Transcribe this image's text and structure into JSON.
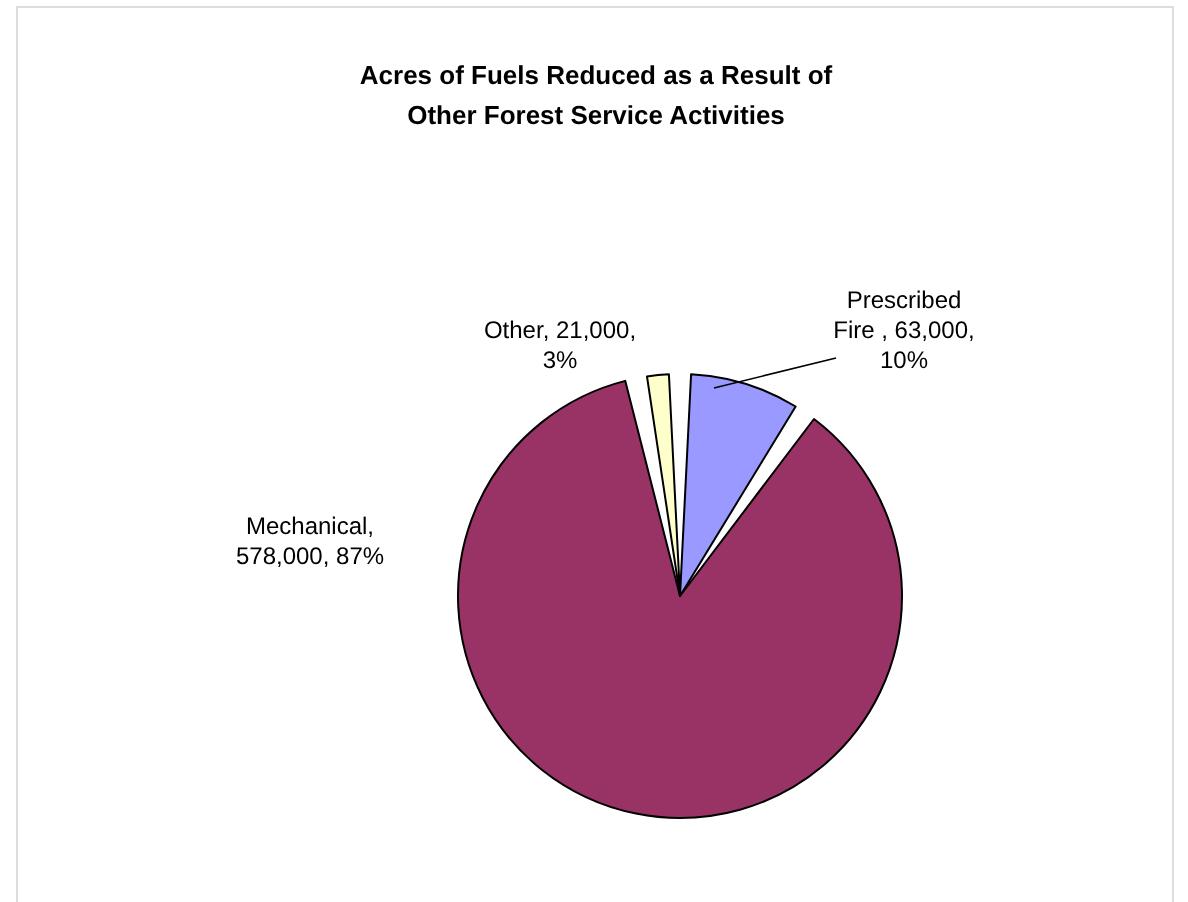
{
  "chart_data": {
    "type": "pie",
    "title": "Acres of Fuels Reduced as a Result of Other Forest Service Activities",
    "categories": [
      "Prescribed Fire",
      "Mechanical",
      "Other"
    ],
    "values": [
      63000,
      578000,
      21000
    ],
    "value_labels": [
      " , 63,000, 10%",
      ", 578,000, 87%",
      ", 21,000, 3%"
    ],
    "colors": [
      "#9999ff",
      "#993366",
      "#ffffcc"
    ],
    "legend": false
  }
}
